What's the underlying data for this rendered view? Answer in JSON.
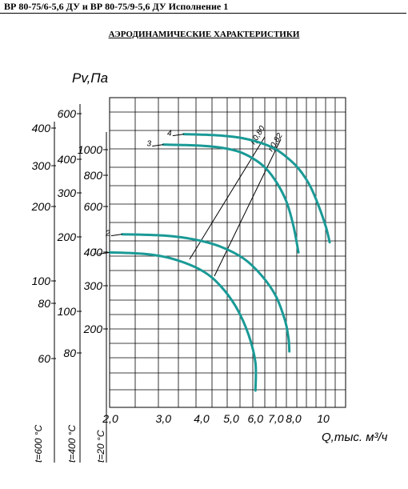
{
  "header": {
    "title": "ВР 80-75/6-5,6 ДУ и ВР 80-75/9-5,6 ДУ Исполнение 1"
  },
  "section_title": "АЭРОДИНАМИЧЕСКИЕ ХАРАКТЕРИСТИКИ",
  "chart_data": {
    "type": "line",
    "ylabel": "Pv,Па",
    "xlabel": "Q,тыс. м³/ч",
    "x_ticks": [
      "2,0",
      "3,0",
      "4,0",
      "5,0",
      "6,0",
      "7,0",
      "8,0",
      "10"
    ],
    "y_scales": [
      {
        "temperature_label": "t=600 °C",
        "ticks": [
          "400",
          "300",
          "200",
          "100",
          "80",
          "60"
        ]
      },
      {
        "temperature_label": "t=400 °C",
        "ticks": [
          "600",
          "400",
          "300",
          "200",
          "100",
          "80"
        ]
      },
      {
        "temperature_label": "t=20 °C",
        "ticks": [
          "1000",
          "800",
          "600",
          "400",
          "300",
          "200"
        ]
      }
    ],
    "efficiency_lines": [
      "η0,80",
      "η0,82"
    ],
    "grid": true,
    "series": [
      {
        "name": "1",
        "color": "#1a9a96",
        "x": [
          2.0,
          2.6,
          3.2,
          4.0,
          4.6,
          5.2,
          5.7,
          6.0,
          6.0
        ],
        "y": [
          385,
          380,
          365,
          330,
          290,
          240,
          190,
          150,
          118
        ]
      },
      {
        "name": "2",
        "color": "#1a9a96",
        "x": [
          2.2,
          3.0,
          3.8,
          4.6,
          5.5,
          6.3,
          7.0,
          7.5,
          7.7,
          7.75
        ],
        "y": [
          450,
          445,
          430,
          405,
          365,
          315,
          265,
          215,
          185,
          165
        ]
      },
      {
        "name": "3",
        "color": "#1a9a96",
        "x": [
          3.0,
          3.5,
          4.1,
          4.7,
          5.3,
          5.9,
          6.5,
          7.1,
          7.6,
          8.0,
          8.3
        ],
        "y": [
          970,
          966,
          958,
          942,
          912,
          860,
          790,
          690,
          590,
          480,
          385
        ]
      },
      {
        "name": "4",
        "color": "#1a9a96",
        "x": [
          3.5,
          4.0,
          4.7,
          5.4,
          6.1,
          6.9,
          7.6,
          8.3,
          9.0,
          9.6,
          10.2,
          10.5
        ],
        "y": [
          1060,
          1056,
          1046,
          1026,
          992,
          940,
          870,
          790,
          690,
          585,
          480,
          420
        ]
      }
    ]
  }
}
